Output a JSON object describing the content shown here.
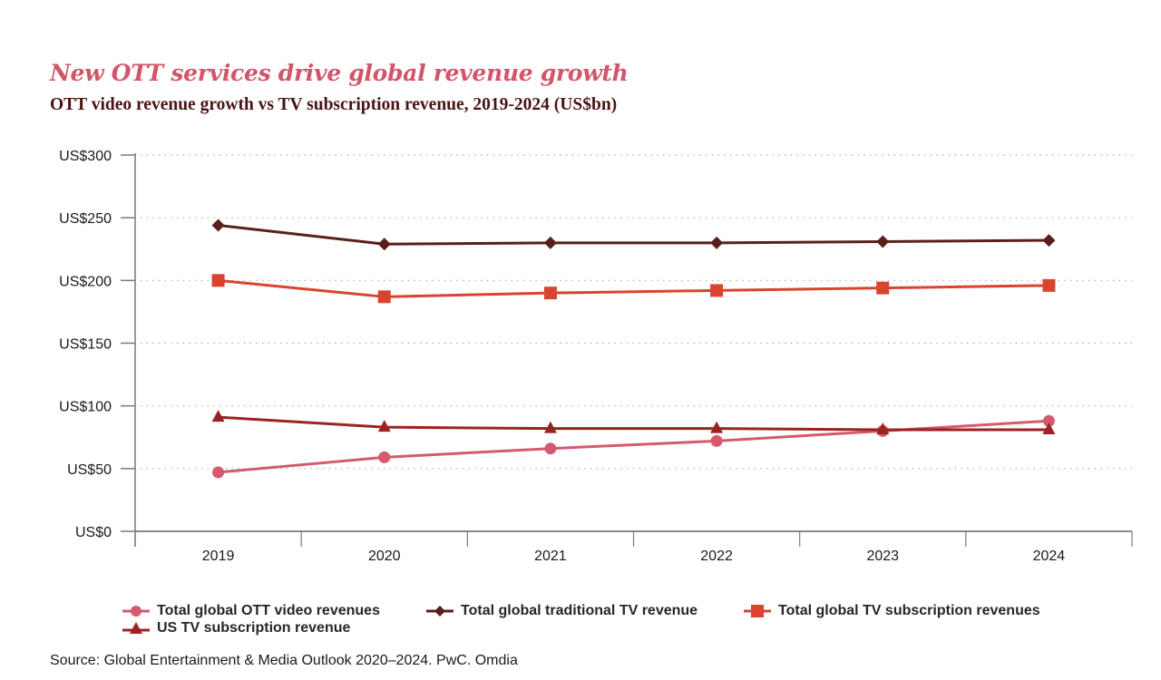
{
  "header": {
    "title": "New OTT services drive global revenue growth",
    "subtitle": "OTT video revenue growth vs TV subscription revenue, 2019-2024 (US$bn)"
  },
  "source": "Source: Global Entertainment & Media Outlook 2020–2024. PwC. Omdia",
  "chart_data": {
    "type": "line",
    "title": "New OTT services drive global revenue growth",
    "subtitle": "OTT video revenue growth vs TV subscription revenue, 2019-2024 (US$bn)",
    "xlabel": "",
    "ylabel": "",
    "categories": [
      "2019",
      "2020",
      "2021",
      "2022",
      "2023",
      "2024"
    ],
    "ylim": [
      0,
      300
    ],
    "yticks": [
      0,
      50,
      100,
      150,
      200,
      250,
      300
    ],
    "ytick_labels": [
      "US$0",
      "US$50",
      "US$100",
      "US$150",
      "US$200",
      "US$250",
      "US$300"
    ],
    "grid": "horizontal-dotted",
    "legend_position": "bottom",
    "series": [
      {
        "name": "Total global OTT video revenues",
        "marker": "circle",
        "color": "#d35b6d",
        "values": [
          47,
          59,
          66,
          72,
          80,
          88
        ]
      },
      {
        "name": "Total global traditional TV revenue",
        "marker": "diamond",
        "color": "#5a1f1a",
        "values": [
          244,
          229,
          230,
          230,
          231,
          232
        ]
      },
      {
        "name": "Total global TV subscription revenues",
        "marker": "square",
        "color": "#d9442e",
        "values": [
          200,
          187,
          190,
          192,
          194,
          196
        ]
      },
      {
        "name": "US TV subscription revenue",
        "marker": "triangle",
        "color": "#9b2322",
        "values": [
          91,
          83,
          82,
          82,
          81,
          81
        ]
      }
    ]
  }
}
